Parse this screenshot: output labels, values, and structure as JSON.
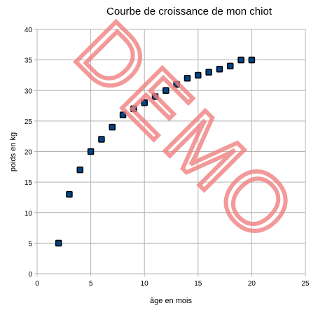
{
  "chart_data": {
    "type": "scatter",
    "title": "Courbe de croissance de mon chiot",
    "xlabel": "âge en mois",
    "ylabel": "poids en kg",
    "xlim": [
      0,
      25
    ],
    "ylim": [
      0,
      40
    ],
    "x_ticks": [
      0,
      5,
      10,
      15,
      20,
      25
    ],
    "y_ticks": [
      0,
      5,
      10,
      15,
      20,
      25,
      30,
      35,
      40
    ],
    "grid": true,
    "legend": "none",
    "series": [
      {
        "x": [
          2,
          3,
          4,
          5,
          6,
          7,
          8,
          9,
          10,
          11,
          12,
          13,
          14,
          15,
          16,
          17,
          18,
          19,
          20
        ],
        "y": [
          5,
          13,
          17,
          20,
          22,
          24,
          26,
          27,
          28,
          29,
          30,
          31,
          32,
          32.5,
          33,
          33.5,
          34,
          35,
          35
        ],
        "color": "#004586",
        "marker": "square"
      }
    ],
    "watermark": "DEMO"
  },
  "colors": {
    "grid": "#b3b3b3",
    "axis": "#b3b3b3",
    "marker_fill": "#004586",
    "marker_edge": "#000000",
    "watermark": "#f08080"
  }
}
